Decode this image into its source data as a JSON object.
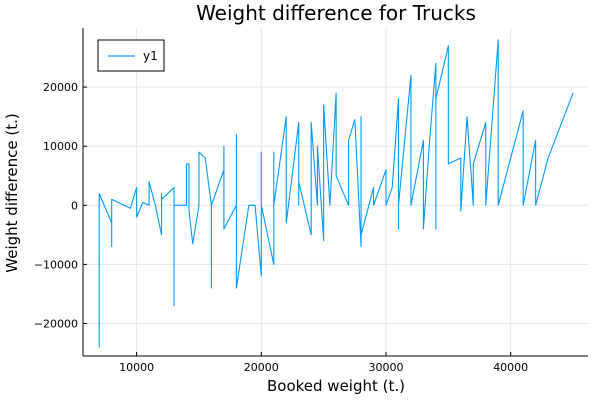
{
  "chart_data": {
    "type": "line",
    "title": "Weight difference for Trucks",
    "xlabel": "Booked weight (t.)",
    "ylabel": "Weight difference (t.)",
    "xlim": [
      5700,
      46200
    ],
    "ylim": [
      -25500,
      30000
    ],
    "xticks": [
      10000,
      20000,
      30000,
      40000
    ],
    "yticks": [
      -20000,
      -10000,
      0,
      10000,
      20000
    ],
    "xtick_labels": [
      "10000",
      "20000",
      "30000",
      "40000"
    ],
    "ytick_labels": [
      "−20000",
      "−10000",
      "0",
      "10000",
      "20000"
    ],
    "grid": true,
    "legend_position": "top-left",
    "line_color": "#009af9",
    "series": [
      {
        "name": "y1",
        "x": [
          7000,
          7000,
          7000,
          8000,
          8000,
          8000,
          9500,
          10000,
          10000,
          10500,
          11000,
          11000,
          11500,
          12000,
          12000,
          12000,
          13000,
          13000,
          13000,
          14000,
          14000,
          14200,
          14200,
          14500,
          15000,
          15000,
          15500,
          16000,
          16000,
          16000,
          17000,
          17000,
          17000,
          18000,
          18000,
          18000,
          19000,
          19500,
          20000,
          20000,
          20000,
          21000,
          21000,
          21000,
          22000,
          22000,
          23000,
          23000,
          23000,
          24000,
          24000,
          24500,
          24500,
          25000,
          25000,
          25500,
          26000,
          26000,
          27000,
          27000,
          27500,
          28000,
          28000,
          28000,
          29000,
          29000,
          30000,
          30000,
          30500,
          31000,
          31000,
          31000,
          32000,
          32000,
          32000,
          33000,
          33000,
          33500,
          34000,
          34000,
          34000,
          35000,
          35000,
          36000,
          36000,
          36500,
          37000,
          37000,
          38000,
          38000,
          39000,
          39000,
          39000,
          41000,
          41000,
          42000,
          42000,
          43000,
          45000
        ],
        "y": [
          0,
          -24000,
          2000,
          -3000,
          -7000,
          1000,
          -500,
          3000,
          -2000,
          500,
          0,
          4000,
          0,
          -5000,
          2000,
          1000,
          3000,
          -17000,
          0,
          0,
          7000,
          7000,
          -1000,
          -6500,
          0,
          9000,
          8000,
          0,
          -14000,
          0,
          6000,
          10000,
          -4000,
          0,
          12000,
          -14000,
          0,
          0,
          -12000,
          9000,
          0,
          -10000,
          9000,
          0,
          15000,
          -3000,
          14000,
          0,
          4000,
          -5000,
          14000,
          0,
          10000,
          -6000,
          17000,
          0,
          19000,
          5000,
          0,
          11000,
          14500,
          -7000,
          15000,
          -5000,
          3000,
          0,
          6000,
          0,
          3000,
          18000,
          -4000,
          0,
          22000,
          18000,
          0,
          11000,
          -4000,
          11000,
          24000,
          -4000,
          18000,
          27000,
          7000,
          8000,
          -1000,
          15000,
          0,
          7000,
          14000,
          0,
          28000,
          6000,
          0,
          16000,
          0,
          11000,
          0,
          8000,
          19000
        ]
      }
    ]
  }
}
